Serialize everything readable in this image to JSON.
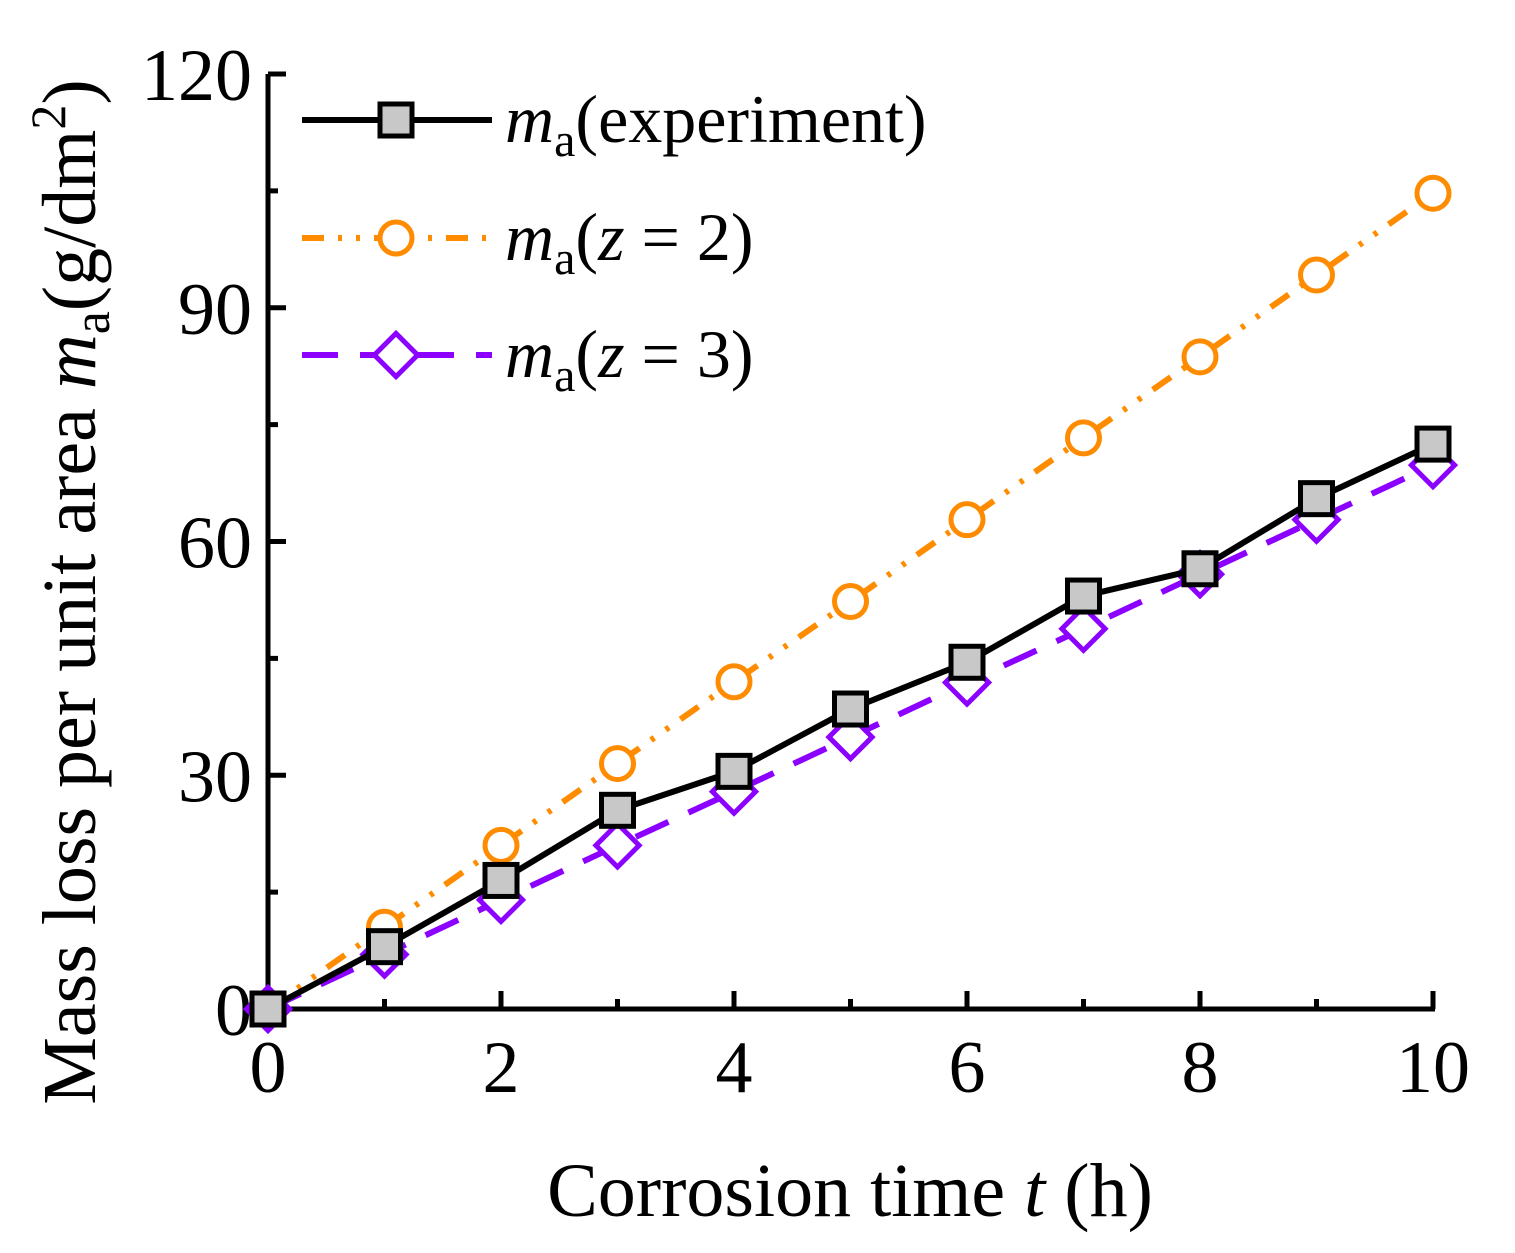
{
  "chart_data": {
    "type": "line",
    "xlabel": "Corrosion time t (h)",
    "xlabel_parts": {
      "pre": "Corrosion time ",
      "var": "t",
      "post": " (h)"
    },
    "ylabel": "Mass loss per unit area ma(g/dm2)",
    "ylabel_parts": {
      "pre": "Mass loss per unit area ",
      "var": "m",
      "sub": "a",
      "unit_pre": "(g/dm",
      "unit_sup": "2",
      "unit_post": ")"
    },
    "xlim": [
      0,
      10
    ],
    "ylim": [
      0,
      120
    ],
    "xticks": [
      0,
      2,
      4,
      6,
      8,
      10
    ],
    "xtick_labels": [
      "0",
      "2",
      "4",
      "6",
      "8",
      "10"
    ],
    "yticks": [
      0,
      30,
      60,
      90,
      120
    ],
    "ytick_labels": [
      "0",
      "30",
      "60",
      "90",
      "120"
    ],
    "grid": false,
    "legend_position": "top-left",
    "x": [
      0,
      1,
      2,
      3,
      4,
      5,
      6,
      7,
      8,
      9,
      10
    ],
    "series": [
      {
        "name": "ma(experiment)",
        "legend_var": "m",
        "legend_sub": "a",
        "legend_rest": "(experiment)",
        "color": "#000000",
        "marker": "square",
        "marker_fill": "#c8c8c8",
        "line_style": "solid",
        "values": [
          0,
          8,
          16.5,
          25.5,
          30.5,
          38.5,
          44.5,
          53,
          56.5,
          65.5,
          72.5
        ]
      },
      {
        "name": "ma(z = 2)",
        "legend_var": "m",
        "legend_sub": "a",
        "legend_rest": "(z = 2)",
        "color": "#ff8c00",
        "marker": "circle",
        "marker_fill": "#ffffff",
        "line_style": "dash-dot-dot",
        "values": [
          0,
          10.5,
          21,
          31.5,
          42,
          52.3,
          62.8,
          73.3,
          83.7,
          94.2,
          104.7
        ]
      },
      {
        "name": "ma(z = 3)",
        "legend_var": "m",
        "legend_sub": "a",
        "legend_rest": "(z = 3)",
        "color": "#8b00ff",
        "marker": "diamond",
        "marker_fill": "#ffffff",
        "line_style": "dashed",
        "values": [
          0,
          7,
          14,
          21,
          27.9,
          34.9,
          41.9,
          48.8,
          55.8,
          62.8,
          69.8
        ]
      }
    ]
  }
}
